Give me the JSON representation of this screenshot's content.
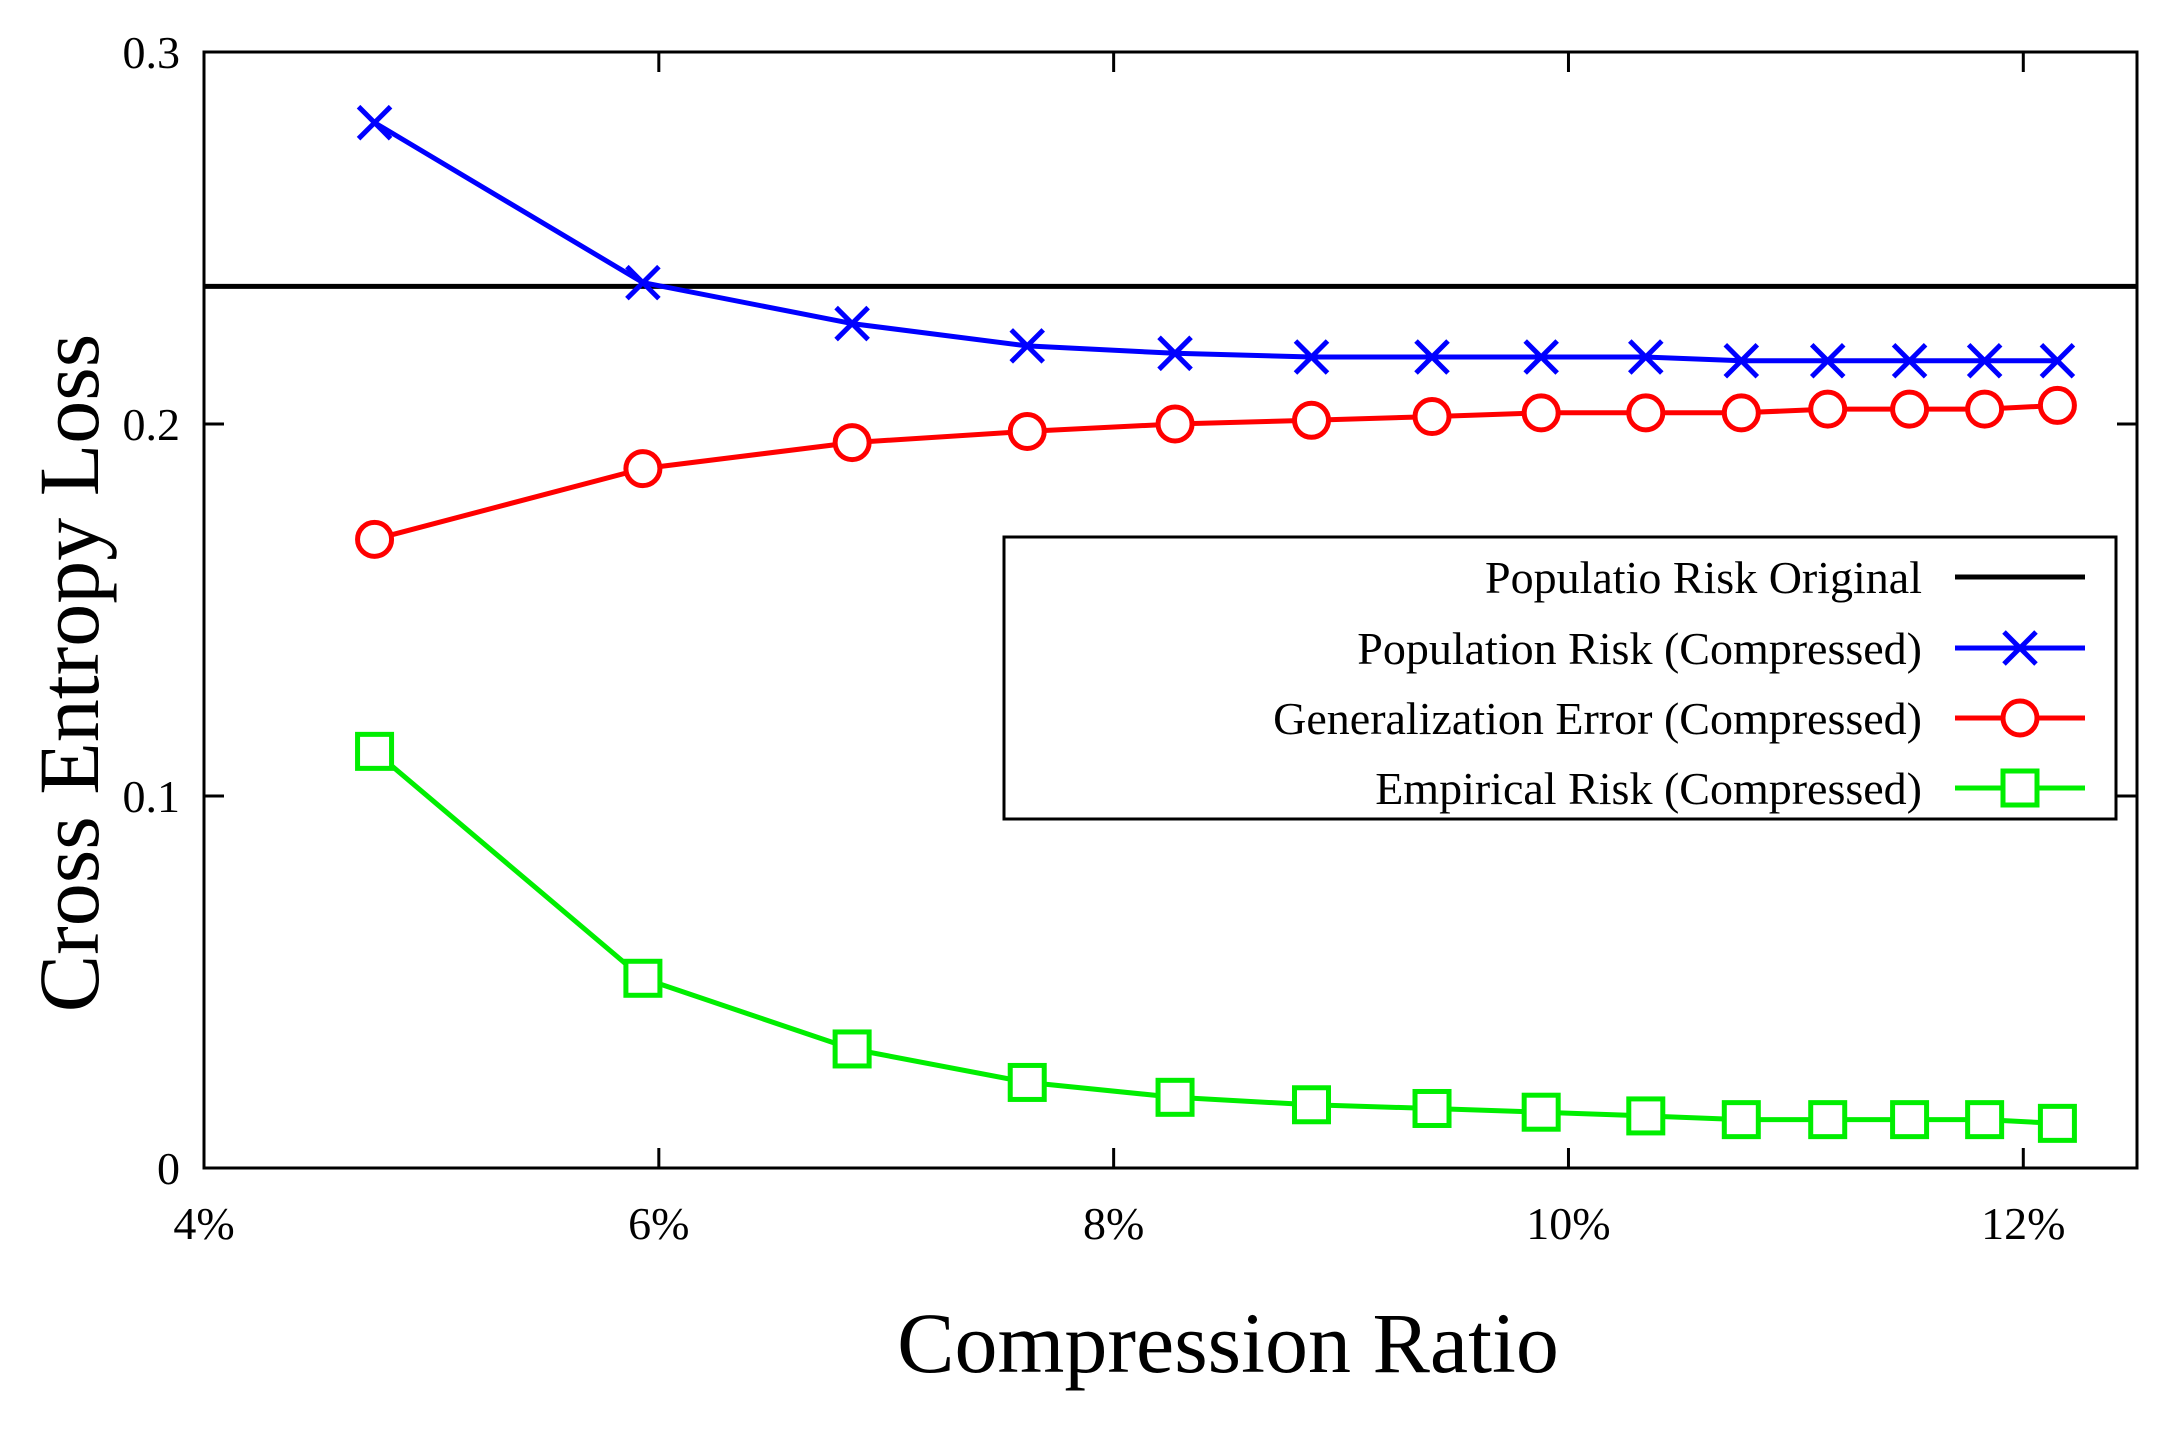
{
  "chart_data": {
    "type": "line",
    "title": "",
    "xlabel": "Compression Ratio",
    "ylabel": "Cross Entropy Loss",
    "xlim": [
      4,
      12.5
    ],
    "ylim": [
      0,
      0.3
    ],
    "x_ticks": [
      4,
      6,
      8,
      10,
      12
    ],
    "x_tick_labels": [
      "4%",
      "6%",
      "8%",
      "10%",
      "12%"
    ],
    "y_ticks": [
      0,
      0.1,
      0.2,
      0.3
    ],
    "y_tick_labels": [
      "0",
      "0.1",
      "0.2",
      "0.3"
    ],
    "grid": false,
    "legend_position": "center-right",
    "baseline": {
      "name": "Populatio Risk Original",
      "value": 0.237,
      "color": "#000000"
    },
    "x": [
      4.75,
      5.93,
      6.85,
      7.62,
      8.27,
      8.87,
      9.4,
      9.88,
      10.34,
      10.76,
      11.14,
      11.5,
      11.83,
      12.15
    ],
    "series": [
      {
        "name": "Population Risk (Compressed)",
        "color": "#0000ff",
        "marker": "x",
        "values": [
          0.281,
          0.238,
          0.227,
          0.221,
          0.219,
          0.218,
          0.218,
          0.218,
          0.218,
          0.217,
          0.217,
          0.217,
          0.217,
          0.217
        ]
      },
      {
        "name": "Generalization Error (Compressed)",
        "color": "#ff0000",
        "marker": "circle",
        "values": [
          0.169,
          0.188,
          0.195,
          0.198,
          0.2,
          0.201,
          0.202,
          0.203,
          0.203,
          0.203,
          0.204,
          0.204,
          0.204,
          0.205
        ]
      },
      {
        "name": "Empirical Risk (Compressed)",
        "color": "#00ee00",
        "marker": "square",
        "values": [
          0.112,
          0.051,
          0.032,
          0.023,
          0.019,
          0.017,
          0.016,
          0.015,
          0.014,
          0.013,
          0.013,
          0.013,
          0.013,
          0.012
        ]
      }
    ]
  }
}
